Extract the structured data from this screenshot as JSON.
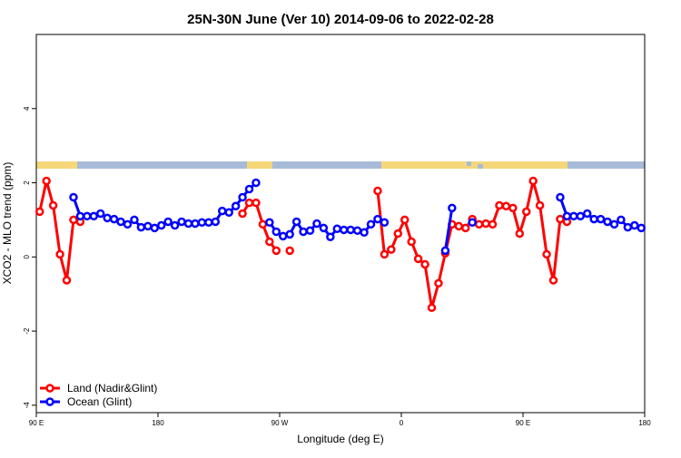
{
  "chart_data": {
    "type": "line",
    "title": "25N-30N June (Ver 10)   2014-09-06 to 2022-02-28",
    "xlabel": "Longitude (deg E)",
    "ylabel": "XCO2 - MLO trend (ppm)",
    "x": [
      92.5,
      97.5,
      102.5,
      107.5,
      112.5,
      117.5,
      122.5,
      127.5,
      132.5,
      137.5,
      142.5,
      147.5,
      152.5,
      157.5,
      162.5,
      167.5,
      172.5,
      177.5,
      182.5,
      187.5,
      192.5,
      197.5,
      202.5,
      207.5,
      212.5,
      217.5,
      222.5,
      227.5,
      232.5,
      237.5,
      242.5,
      247.5,
      252.5,
      257.5,
      262.5,
      267.5,
      272.5,
      277.5,
      282.5,
      287.5,
      292.5,
      297.5,
      302.5,
      307.5,
      312.5,
      317.5,
      322.5,
      327.5,
      332.5,
      337.5,
      342.5,
      347.5,
      352.5,
      357.5,
      362.5,
      367.5,
      372.5,
      377.5,
      382.5,
      387.5,
      392.5,
      397.5,
      402.5,
      407.5,
      412.5,
      417.5,
      422.5,
      427.5,
      432.5,
      437.5,
      442.5,
      447.5,
      452.5,
      457.5,
      462.5,
      467.5,
      472.5,
      477.5,
      482.5,
      487.5,
      492.5,
      497.5,
      502.5,
      507.5,
      512.5,
      517.5,
      522.5,
      527.5,
      532.5,
      537.5
    ],
    "series": [
      {
        "name": "Land (Nadir&Glint)",
        "color": "#ff0000",
        "values": [
          1.22,
          2.05,
          1.39,
          0.07,
          -0.63,
          1.0,
          0.95,
          null,
          null,
          null,
          null,
          null,
          null,
          null,
          null,
          null,
          null,
          null,
          null,
          null,
          null,
          null,
          null,
          null,
          null,
          null,
          null,
          null,
          null,
          null,
          1.17,
          1.46,
          1.46,
          0.88,
          0.41,
          0.17,
          null,
          0.17,
          null,
          null,
          null,
          null,
          null,
          null,
          null,
          null,
          null,
          null,
          null,
          null,
          1.78,
          0.07,
          0.2,
          0.63,
          1.0,
          0.41,
          -0.05,
          -0.2,
          -1.37,
          -0.71,
          0.1,
          0.88,
          0.83,
          0.78,
          1.02,
          0.88,
          0.9,
          0.88,
          1.39,
          1.37,
          1.32,
          0.63,
          1.22,
          2.05,
          1.39,
          0.07,
          -0.63,
          1.02,
          0.95,
          null,
          null,
          null,
          null,
          null,
          null,
          null,
          null,
          null,
          null,
          null
        ]
      },
      {
        "name": "Ocean (Glint)",
        "color": "#0000ff",
        "values": [
          null,
          null,
          null,
          null,
          null,
          1.61,
          1.1,
          1.1,
          1.1,
          1.17,
          1.05,
          1.02,
          0.95,
          0.88,
          1.0,
          0.8,
          0.83,
          0.78,
          0.85,
          0.95,
          0.85,
          0.95,
          0.9,
          0.9,
          0.93,
          0.93,
          0.95,
          1.24,
          1.2,
          1.37,
          1.61,
          1.83,
          2.0,
          null,
          0.93,
          0.68,
          0.56,
          0.61,
          0.95,
          0.68,
          0.71,
          0.9,
          0.78,
          0.54,
          0.76,
          0.73,
          0.73,
          0.71,
          0.66,
          0.88,
          1.02,
          0.93,
          null,
          null,
          null,
          null,
          null,
          null,
          null,
          null,
          0.17,
          1.32,
          null,
          null,
          0.93,
          null,
          null,
          null,
          null,
          null,
          null,
          null,
          null,
          null,
          null,
          null,
          null,
          1.61,
          1.1,
          1.1,
          1.1,
          1.17,
          1.02,
          1.02,
          0.95,
          0.88,
          1.0,
          0.8,
          0.85,
          0.78
        ]
      }
    ],
    "xlim": [
      90,
      540
    ],
    "xticks": [
      {
        "value": 90,
        "label": "90 E"
      },
      180,
      {
        "value": 270,
        "label": "90 W"
      },
      {
        "value": 360,
        "label": "0"
      },
      {
        "value": 450,
        "label": "90 E"
      },
      {
        "value": 540,
        "label": "180"
      }
    ],
    "ylim": [
      -4.2,
      6
    ],
    "yticks": [
      -4,
      -2,
      0,
      2,
      4
    ],
    "legend": "bottomleft"
  }
}
